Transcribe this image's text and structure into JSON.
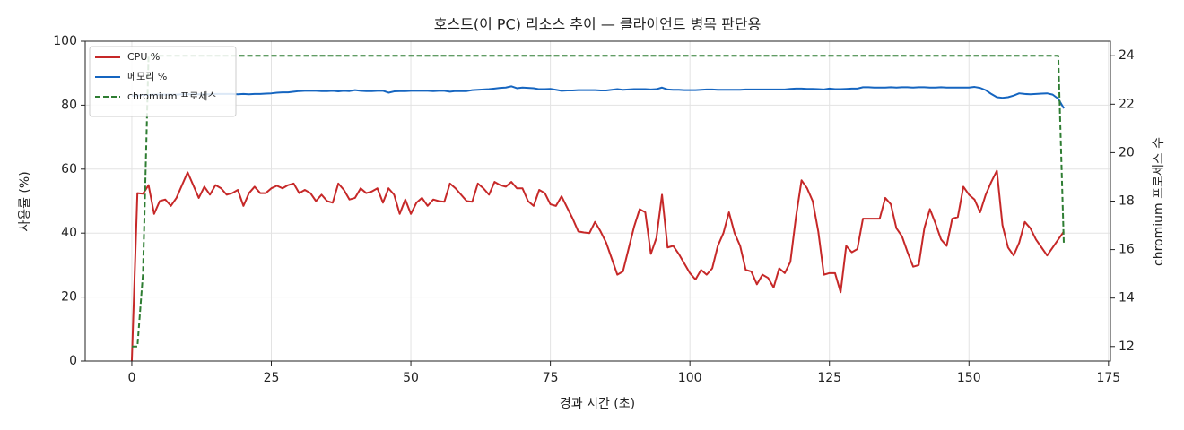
{
  "chart_data": {
    "type": "line",
    "title": "호스트(이 PC) 리소스 추이 — 클라이언트 병목 판단용",
    "xlabel": "경과 시간 (초)",
    "ylabel": "사용률 (%)",
    "y2label": "chromium 프로세스 수",
    "x": [
      0,
      1,
      2,
      3,
      4,
      5,
      6,
      7,
      8,
      9,
      10,
      11,
      12,
      13,
      14,
      15,
      16,
      17,
      18,
      19,
      20,
      21,
      22,
      23,
      24,
      25,
      26,
      27,
      28,
      29,
      30,
      31,
      32,
      33,
      34,
      35,
      36,
      37,
      38,
      39,
      40,
      41,
      42,
      43,
      44,
      45,
      46,
      47,
      48,
      49,
      50,
      51,
      52,
      53,
      54,
      55,
      56,
      57,
      58,
      59,
      60,
      61,
      62,
      63,
      64,
      65,
      66,
      67,
      68,
      69,
      70,
      71,
      72,
      73,
      74,
      75,
      76,
      77,
      78,
      79,
      80,
      81,
      82,
      83,
      84,
      85,
      86,
      87,
      88,
      89,
      90,
      91,
      92,
      93,
      94,
      95,
      96,
      97,
      98,
      99,
      100,
      101,
      102,
      103,
      104,
      105,
      106,
      107,
      108,
      109,
      110,
      111,
      112,
      113,
      114,
      115,
      116,
      117,
      118,
      119,
      120,
      121,
      122,
      123,
      124,
      125,
      126,
      127,
      128,
      129,
      130,
      131,
      132,
      133,
      134,
      135,
      136,
      137,
      138,
      139,
      140,
      141,
      142,
      143,
      144,
      145,
      146,
      147,
      148,
      149,
      150,
      151,
      152,
      153,
      154,
      155,
      156,
      157,
      158,
      159,
      160,
      161,
      162,
      163,
      164,
      165,
      166,
      167
    ],
    "xlim": [
      -8.35,
      175.35
    ],
    "ylim": [
      0,
      100
    ],
    "y2lim": [
      11.4,
      24.6
    ],
    "xticks": [
      0,
      25,
      50,
      75,
      100,
      125,
      150,
      175
    ],
    "yticks": [
      0,
      20,
      40,
      60,
      80,
      100
    ],
    "y2ticks": [
      12,
      14,
      16,
      18,
      20,
      22,
      24
    ],
    "grid": true,
    "legend": "upper left",
    "series": [
      {
        "name": "CPU %",
        "color": "#c62828",
        "linestyle": "solid",
        "axis": "y",
        "values": [
          0,
          52.5,
          52.3,
          55,
          46,
          50,
          50.5,
          48.5,
          51,
          55,
          59,
          55,
          51,
          54.5,
          52,
          55,
          54,
          52,
          52.5,
          53.5,
          48.5,
          52.5,
          54.5,
          52.5,
          52.5,
          54,
          54.8,
          54,
          55,
          55.5,
          52.5,
          53.5,
          52.5,
          50,
          52,
          50,
          49.5,
          55.5,
          53.5,
          50.5,
          51,
          54,
          52.5,
          53,
          54,
          49.5,
          54,
          52,
          46,
          50.5,
          46,
          49.5,
          51,
          48.5,
          50.5,
          50,
          49.8,
          55.5,
          54,
          52,
          50,
          49.8,
          55.5,
          54,
          52,
          56,
          55,
          54.5,
          56,
          54,
          54,
          50,
          48.5,
          53.5,
          52.5,
          49,
          48.5,
          51.5,
          48,
          44.5,
          40.5,
          40.2,
          40,
          43.5,
          40.5,
          37,
          32,
          27,
          28,
          35,
          42,
          47.5,
          46.5,
          33.5,
          38.5,
          52,
          35.5,
          36,
          33.5,
          30.5,
          27.5,
          25.5,
          28.5,
          27,
          29,
          36,
          40,
          46.5,
          40,
          36,
          28.5,
          28,
          24,
          27,
          26,
          23,
          29,
          27.5,
          31,
          45,
          56.5,
          54,
          50,
          40.5,
          27,
          27.5,
          27.5,
          21.5,
          36,
          34,
          35,
          44.5,
          44.5,
          44.5,
          44.5,
          51,
          49,
          41.5,
          39,
          34,
          29.5,
          30,
          41.5,
          47.5,
          43,
          38,
          36,
          44.5,
          45,
          54.5,
          52,
          50.5,
          46.5,
          52,
          56,
          59.5,
          42.5,
          35.5,
          33,
          37,
          43.5,
          41.5,
          38,
          35.5,
          33,
          35.5,
          38,
          40.5
        ]
      },
      {
        "name": "메모리 %",
        "color": "#1565c0",
        "linestyle": "solid",
        "axis": "y",
        "values": [
          83,
          83,
          83.2,
          83.2,
          83.3,
          83.3,
          83.3,
          83.3,
          83.3,
          83.4,
          83.4,
          83.4,
          83.4,
          83.4,
          83.4,
          83.5,
          83.5,
          83.5,
          83.5,
          83.4,
          83.5,
          83.4,
          83.5,
          83.5,
          83.6,
          83.7,
          83.9,
          84,
          84,
          84.2,
          84.4,
          84.5,
          84.5,
          84.5,
          84.4,
          84.4,
          84.5,
          84.3,
          84.5,
          84.4,
          84.7,
          84.5,
          84.4,
          84.4,
          84.5,
          84.5,
          83.9,
          84.3,
          84.4,
          84.4,
          84.5,
          84.5,
          84.5,
          84.5,
          84.4,
          84.5,
          84.5,
          84.2,
          84.4,
          84.4,
          84.4,
          84.7,
          84.8,
          84.9,
          85,
          85.2,
          85.4,
          85.5,
          85.9,
          85.3,
          85.5,
          85.4,
          85.3,
          85,
          85,
          85.1,
          84.8,
          84.5,
          84.6,
          84.6,
          84.7,
          84.7,
          84.7,
          84.7,
          84.6,
          84.6,
          84.8,
          85,
          84.8,
          84.9,
          85,
          85,
          85,
          84.9,
          85,
          85.5,
          84.9,
          84.8,
          84.8,
          84.7,
          84.7,
          84.7,
          84.8,
          84.9,
          84.9,
          84.8,
          84.8,
          84.8,
          84.8,
          84.8,
          84.9,
          84.9,
          84.9,
          84.9,
          84.9,
          84.9,
          84.9,
          84.9,
          85.1,
          85.2,
          85.2,
          85.1,
          85.1,
          85,
          84.9,
          85.2,
          85,
          85,
          85.1,
          85.2,
          85.2,
          85.6,
          85.6,
          85.5,
          85.5,
          85.5,
          85.6,
          85.5,
          85.6,
          85.6,
          85.5,
          85.6,
          85.6,
          85.5,
          85.5,
          85.6,
          85.5,
          85.5,
          85.5,
          85.5,
          85.5,
          85.7,
          85.4,
          84.7,
          83.5,
          82.5,
          82.3,
          82.5,
          83,
          83.7,
          83.5,
          83.4,
          83.5,
          83.6,
          83.7,
          83.3,
          82,
          79
        ]
      },
      {
        "name": "chromium 프로세스",
        "color": "#2e7d32",
        "linestyle": "dashed",
        "axis": "y2",
        "values": [
          12,
          12,
          15,
          24,
          24,
          24,
          24,
          24,
          24,
          24,
          24,
          24,
          24,
          24,
          24,
          24,
          24,
          24,
          24,
          24,
          24,
          24,
          24,
          24,
          24,
          24,
          24,
          24,
          24,
          24,
          24,
          24,
          24,
          24,
          24,
          24,
          24,
          24,
          24,
          24,
          24,
          24,
          24,
          24,
          24,
          24,
          24,
          24,
          24,
          24,
          24,
          24,
          24,
          24,
          24,
          24,
          24,
          24,
          24,
          24,
          24,
          24,
          24,
          24,
          24,
          24,
          24,
          24,
          24,
          24,
          24,
          24,
          24,
          24,
          24,
          24,
          24,
          24,
          24,
          24,
          24,
          24,
          24,
          24,
          24,
          24,
          24,
          24,
          24,
          24,
          24,
          24,
          24,
          24,
          24,
          24,
          24,
          24,
          24,
          24,
          24,
          24,
          24,
          24,
          24,
          24,
          24,
          24,
          24,
          24,
          24,
          24,
          24,
          24,
          24,
          24,
          24,
          24,
          24,
          24,
          24,
          24,
          24,
          24,
          24,
          24,
          24,
          24,
          24,
          24,
          24,
          24,
          24,
          24,
          24,
          24,
          24,
          24,
          24,
          24,
          24,
          24,
          24,
          24,
          24,
          24,
          24,
          24,
          24,
          24,
          24,
          24,
          24,
          24,
          24,
          24,
          24,
          24,
          24,
          24,
          24,
          24,
          24,
          24,
          24,
          24,
          24,
          16.2
        ]
      }
    ]
  }
}
